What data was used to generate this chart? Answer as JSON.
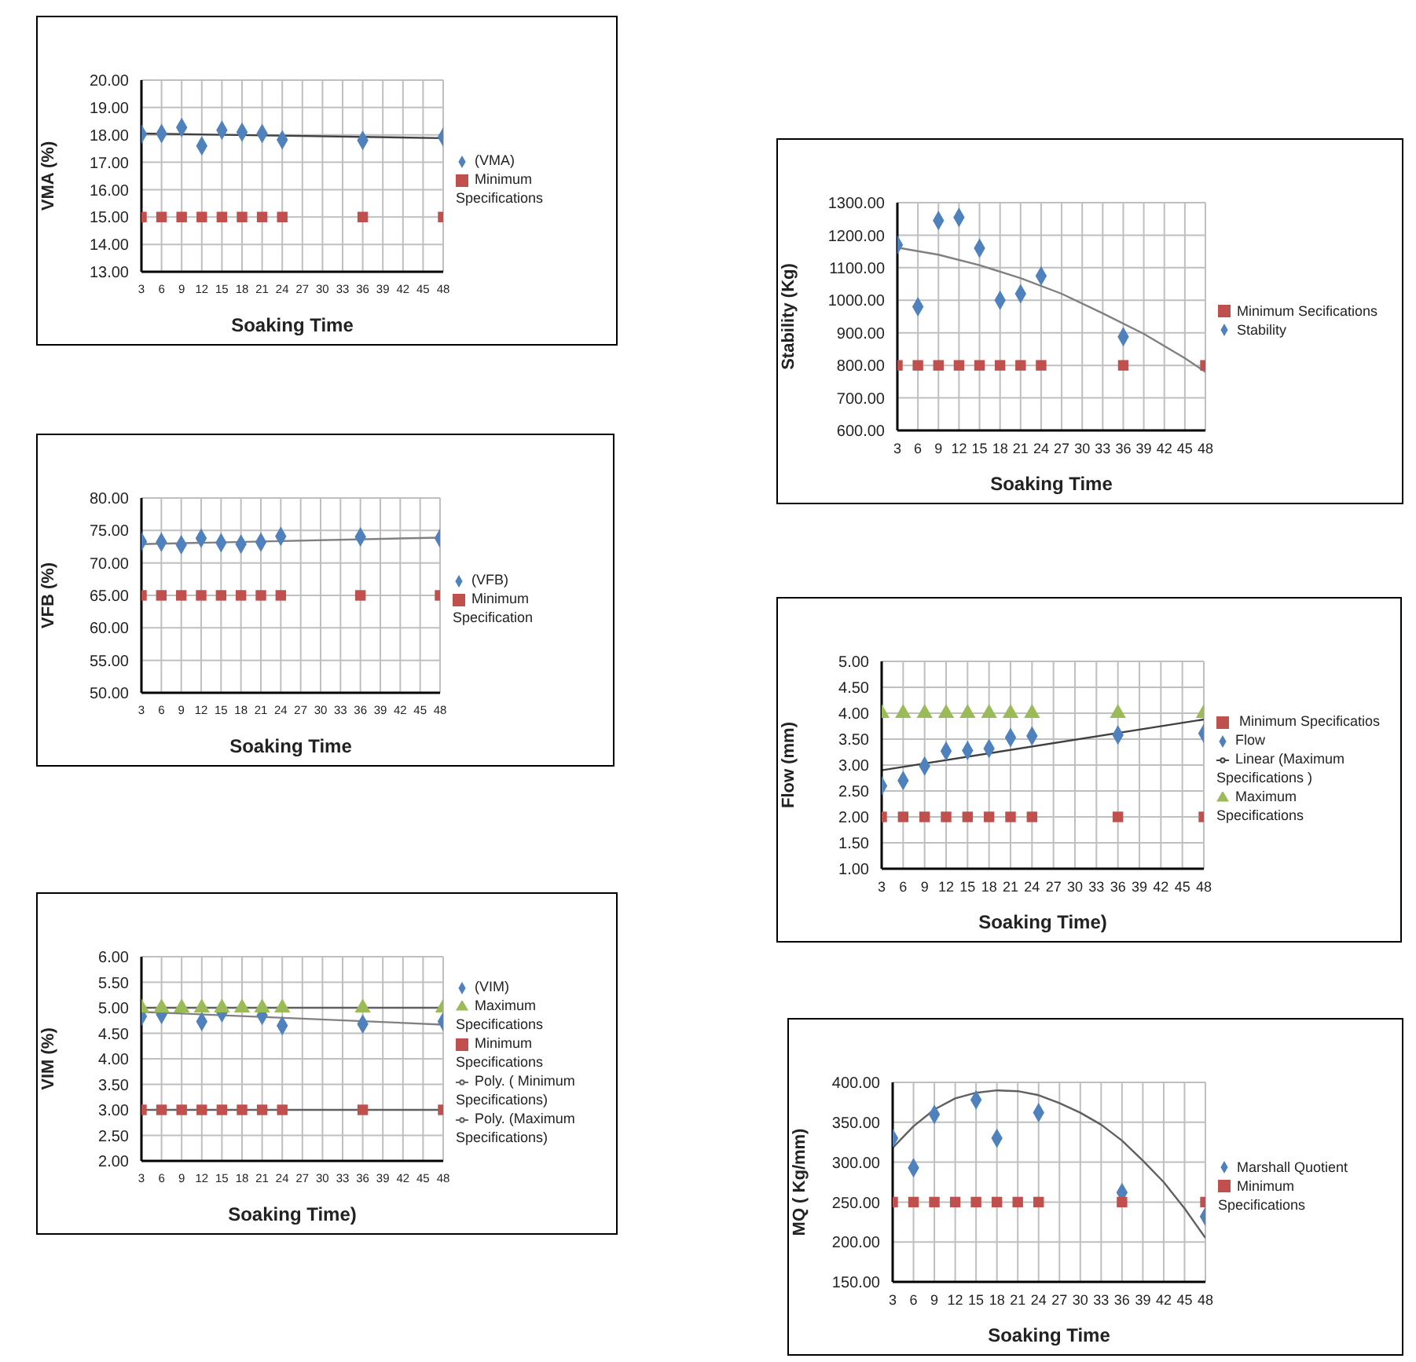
{
  "chart_data": [
    {
      "type": "scatter",
      "xlabel": "Soaking Time",
      "ylabel": "VMA (%)",
      "xlim": [
        3,
        48
      ],
      "xticks": [
        3,
        6,
        9,
        12,
        15,
        18,
        21,
        24,
        27,
        30,
        33,
        36,
        39,
        42,
        45,
        48
      ],
      "ylim": [
        13,
        20
      ],
      "yticks": [
        {
          "value": 13,
          "label": "13.00"
        },
        {
          "value": 14,
          "label": "14.00"
        },
        {
          "value": 15,
          "label": "15.00"
        },
        {
          "value": 16,
          "label": "16.00"
        },
        {
          "value": 17,
          "label": "17.00"
        },
        {
          "value": 18,
          "label": "18.00"
        },
        {
          "value": 19,
          "label": "19.00"
        },
        {
          "value": 20,
          "label": "20.00"
        }
      ],
      "grid": true,
      "legend": "right",
      "x": [
        3,
        6,
        9,
        12,
        15,
        18,
        21,
        24,
        36,
        48
      ],
      "series": [
        {
          "name": "(VMA)",
          "color": "#4f81bd",
          "marker": "diamond",
          "values": [
            18.03,
            18.05,
            18.27,
            17.6,
            18.17,
            18.1,
            18.05,
            17.82,
            17.8,
            17.92
          ]
        },
        {
          "name": "Minimum Specifications",
          "color": "#c0504d",
          "marker": "square",
          "values": [
            15,
            15,
            15,
            15,
            15,
            15,
            15,
            15,
            15,
            15
          ]
        },
        {
          "type": "line",
          "color": "#404040",
          "line_style": "solid",
          "x": [
            3,
            48
          ],
          "values": [
            18.05,
            17.88
          ]
        }
      ]
    },
    {
      "type": "scatter",
      "xlabel": "Soaking Time",
      "ylabel": "VFB (%)",
      "xlim": [
        3,
        48
      ],
      "xticks": [
        3,
        6,
        9,
        12,
        15,
        18,
        21,
        24,
        27,
        30,
        33,
        36,
        39,
        42,
        45,
        48
      ],
      "ylim": [
        50,
        80
      ],
      "yticks": [
        {
          "value": 50,
          "label": "50.00"
        },
        {
          "value": 55,
          "label": "55.00"
        },
        {
          "value": 60,
          "label": "60.00"
        },
        {
          "value": 65,
          "label": "65.00"
        },
        {
          "value": 70,
          "label": "70.00"
        },
        {
          "value": 75,
          "label": "75.00"
        },
        {
          "value": 80,
          "label": "80.00"
        }
      ],
      "grid": true,
      "legend": "right",
      "x": [
        3,
        6,
        9,
        12,
        15,
        18,
        21,
        24,
        36,
        48
      ],
      "series": [
        {
          "name": "(VFB)",
          "color": "#4f81bd",
          "marker": "diamond",
          "values": [
            73.3,
            73.2,
            72.8,
            73.8,
            73.1,
            72.9,
            73.2,
            74.1,
            74.0,
            73.8
          ]
        },
        {
          "name": "Minimum Specification",
          "color": "#c0504d",
          "marker": "square",
          "values": [
            65,
            65,
            65,
            65,
            65,
            65,
            65,
            65,
            65,
            65
          ]
        },
        {
          "type": "line",
          "color": "#808080",
          "line_style": "solid",
          "x": [
            3,
            48
          ],
          "values": [
            72.9,
            73.9
          ]
        }
      ]
    },
    {
      "type": "scatter",
      "xlabel": "Soaking Time)",
      "ylabel": "VIM (%)",
      "xlim": [
        3,
        48
      ],
      "xticks": [
        3,
        6,
        9,
        12,
        15,
        18,
        21,
        24,
        27,
        30,
        33,
        36,
        39,
        42,
        45,
        48
      ],
      "ylim": [
        2,
        6
      ],
      "yticks": [
        {
          "value": 2,
          "label": "2.00"
        },
        {
          "value": 2.5,
          "label": "2.50"
        },
        {
          "value": 3,
          "label": "3.00"
        },
        {
          "value": 3.5,
          "label": "3.50"
        },
        {
          "value": 4,
          "label": "4.00"
        },
        {
          "value": 4.5,
          "label": "4.50"
        },
        {
          "value": 5,
          "label": "5.00"
        },
        {
          "value": 5.5,
          "label": "5.50"
        },
        {
          "value": 6,
          "label": "6.00"
        }
      ],
      "grid": true,
      "legend": "right",
      "x": [
        3,
        6,
        9,
        12,
        15,
        18,
        21,
        24,
        36,
        48
      ],
      "series": [
        {
          "name": "(VIM)",
          "color": "#4f81bd",
          "marker": "diamond",
          "values": [
            4.83,
            4.87,
            null,
            4.73,
            4.9,
            null,
            4.85,
            4.65,
            4.68,
            4.73
          ]
        },
        {
          "name": "Minimum Specifications",
          "color": "#c0504d",
          "marker": "square",
          "values": [
            3,
            3,
            3,
            3,
            3,
            3,
            3,
            3,
            3,
            3
          ]
        },
        {
          "name": "Maximum Specifications",
          "color": "#9bbb59",
          "marker": "triangle",
          "values": [
            5,
            5,
            5,
            5,
            5,
            5,
            5,
            5,
            5,
            5
          ]
        },
        {
          "name": "Poly. ( Minimum Specifications)",
          "type": "line",
          "color": "#606060",
          "line_style": "solid",
          "x": [
            3,
            48
          ],
          "values": [
            3,
            3
          ]
        },
        {
          "name": "Poly. (Maximum Specifications)",
          "type": "line",
          "color": "#606060",
          "line_style": "solid",
          "x": [
            3,
            48
          ],
          "values": [
            5,
            5
          ]
        },
        {
          "type": "line",
          "color": "#808080",
          "line_style": "solid",
          "x": [
            3,
            48
          ],
          "values": [
            4.92,
            4.67
          ]
        }
      ]
    },
    {
      "type": "scatter",
      "xlabel": "Soaking Time",
      "ylabel": "Stability (Kg)",
      "xlim": [
        3,
        48
      ],
      "xticks": [
        3,
        6,
        9,
        12,
        15,
        18,
        21,
        24,
        27,
        30,
        33,
        36,
        39,
        42,
        45,
        48
      ],
      "ylim": [
        600,
        1300
      ],
      "yticks": [
        {
          "value": 600,
          "label": "600.00"
        },
        {
          "value": 700,
          "label": "700.00"
        },
        {
          "value": 800,
          "label": "800.00"
        },
        {
          "value": 900,
          "label": "900.00"
        },
        {
          "value": 1000,
          "label": "1000.00"
        },
        {
          "value": 1100,
          "label": "1100.00"
        },
        {
          "value": 1200,
          "label": "1200.00"
        },
        {
          "value": 1300,
          "label": "1300.00"
        }
      ],
      "grid": true,
      "legend": "right",
      "x": [
        3,
        6,
        9,
        12,
        15,
        18,
        21,
        24,
        36,
        48
      ],
      "series": [
        {
          "name": "Stability",
          "color": "#4f81bd",
          "marker": "diamond",
          "values": [
            1170,
            980,
            1245,
            1255,
            1160,
            1000,
            1020,
            1075,
            888,
            null
          ]
        },
        {
          "name": "Minimum Secifications",
          "color": "#c0504d",
          "marker": "square",
          "values": [
            800,
            800,
            800,
            800,
            800,
            800,
            800,
            800,
            800,
            800
          ]
        },
        {
          "type": "line",
          "color": "#808080",
          "line_style": "solid",
          "x": [
            3,
            9,
            15,
            21,
            27,
            33,
            39,
            45,
            48
          ],
          "values": [
            1162,
            1140,
            1108,
            1068,
            1020,
            960,
            897,
            822,
            780
          ]
        }
      ]
    },
    {
      "type": "scatter",
      "xlabel": "Soaking Time)",
      "ylabel": "Flow  (mm)",
      "xlim": [
        3,
        48
      ],
      "xticks": [
        3,
        6,
        9,
        12,
        15,
        18,
        21,
        24,
        27,
        30,
        33,
        36,
        39,
        42,
        45,
        48
      ],
      "ylim": [
        1,
        5
      ],
      "yticks": [
        {
          "value": 1,
          "label": "1.00"
        },
        {
          "value": 1.5,
          "label": "1.50"
        },
        {
          "value": 2,
          "label": "2.00"
        },
        {
          "value": 2.5,
          "label": "2.50"
        },
        {
          "value": 3,
          "label": "3.00"
        },
        {
          "value": 3.5,
          "label": "3.50"
        },
        {
          "value": 4,
          "label": "4.00"
        },
        {
          "value": 4.5,
          "label": "4.50"
        },
        {
          "value": 5,
          "label": "5.00"
        }
      ],
      "grid": true,
      "legend": "right",
      "x": [
        3,
        6,
        9,
        12,
        15,
        18,
        21,
        24,
        36,
        48
      ],
      "series": [
        {
          "name": "Flow",
          "color": "#4f81bd",
          "marker": "diamond",
          "values": [
            2.6,
            2.7,
            2.98,
            3.27,
            3.28,
            3.32,
            3.53,
            3.56,
            3.58,
            3.61
          ]
        },
        {
          "name": " Minimum Specificatios",
          "color": "#c0504d",
          "marker": "square",
          "values": [
            2,
            2,
            2,
            2,
            2,
            2,
            2,
            2,
            2,
            2
          ]
        },
        {
          "name": "Maximum Specifications",
          "color": "#9bbb59",
          "marker": "triangle",
          "values": [
            4,
            4,
            4,
            4,
            4,
            4,
            4,
            4,
            4,
            4
          ]
        },
        {
          "name": "Linear (Maximum Specifications )",
          "type": "line",
          "color": "#404040",
          "line_style": "solid",
          "x": [
            3,
            48
          ],
          "values": [
            2.9,
            3.88
          ]
        }
      ]
    },
    {
      "type": "scatter",
      "xlabel": "Soaking Time",
      "ylabel": "MQ ( Kg/mm)",
      "xlim": [
        3,
        48
      ],
      "xticks": [
        3,
        6,
        9,
        12,
        15,
        18,
        21,
        24,
        27,
        30,
        33,
        36,
        39,
        42,
        45,
        48
      ],
      "ylim": [
        150,
        400
      ],
      "yticks": [
        {
          "value": 150,
          "label": "150.00"
        },
        {
          "value": 200,
          "label": "200.00"
        },
        {
          "value": 250,
          "label": "250.00"
        },
        {
          "value": 300,
          "label": "300.00"
        },
        {
          "value": 350,
          "label": "350.00"
        },
        {
          "value": 400,
          "label": "400.00"
        }
      ],
      "grid": true,
      "legend": "right",
      "x": [
        3,
        6,
        9,
        12,
        15,
        18,
        21,
        24,
        36,
        48
      ],
      "series": [
        {
          "name": "Marshall Quotient",
          "color": "#4f81bd",
          "marker": "diamond",
          "values": [
            330,
            293,
            360,
            null,
            378,
            330,
            null,
            362,
            262,
            232
          ]
        },
        {
          "name": "Minimum Specifications",
          "color": "#c0504d",
          "marker": "square",
          "values": [
            250,
            250,
            250,
            250,
            250,
            250,
            250,
            250,
            250,
            250
          ]
        },
        {
          "type": "line",
          "color": "#606060",
          "line_style": "solid",
          "x": [
            3,
            6,
            9,
            12,
            15,
            18,
            21,
            24,
            27,
            30,
            33,
            36,
            39,
            42,
            45,
            48
          ],
          "values": [
            318,
            345,
            366,
            380,
            387,
            390,
            389,
            384,
            374,
            362,
            347,
            327,
            302,
            275,
            242,
            205
          ]
        }
      ]
    }
  ]
}
